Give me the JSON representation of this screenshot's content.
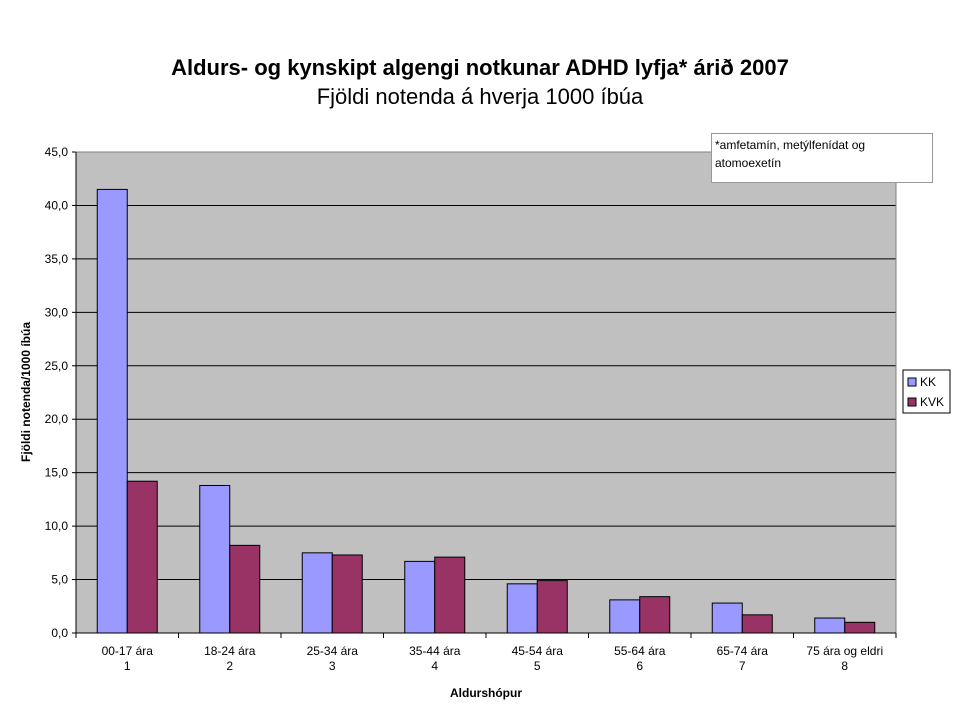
{
  "chart_data": {
    "type": "bar",
    "title": "Aldurs- og kynskipt algengi notkunar ADHD lyfja* árið 2007",
    "subtitle": "Fjöldi notenda á hverja 1000 íbúa",
    "annotation": "*amfetamín, metýlfenídat og atomoexetín",
    "x_label": "Aldurshópur",
    "y_label": "Fjöldi notenda/1000 íbúa",
    "categories": [
      [
        "00-17  ára",
        "1"
      ],
      [
        "18-24  ára",
        "2"
      ],
      [
        "25-34  ára",
        "3"
      ],
      [
        "35-44  ára",
        "4"
      ],
      [
        "45-54  ára",
        "5"
      ],
      [
        "55-64  ára",
        "6"
      ],
      [
        "65-74  ára",
        "7"
      ],
      [
        "75 ára og eldri",
        "8"
      ]
    ],
    "series": [
      {
        "name": "KK",
        "color": "#9999ff",
        "values": [
          41.5,
          13.8,
          7.5,
          6.7,
          4.6,
          3.1,
          2.8,
          1.4
        ]
      },
      {
        "name": "KVK",
        "color": "#993366",
        "values": [
          14.2,
          8.2,
          7.3,
          7.1,
          4.9,
          3.4,
          1.7,
          1.0
        ]
      }
    ],
    "ylim": [
      0,
      45
    ],
    "yticks": [
      {
        "value": 0,
        "label": "0,0"
      },
      {
        "value": 5,
        "label": "5,0"
      },
      {
        "value": 10,
        "label": "10,0"
      },
      {
        "value": 15,
        "label": "15,0"
      },
      {
        "value": 20,
        "label": "20,0"
      },
      {
        "value": 25,
        "label": "25,0"
      },
      {
        "value": 30,
        "label": "30,0"
      },
      {
        "value": 35,
        "label": "35,0"
      },
      {
        "value": 40,
        "label": "40,0"
      },
      {
        "value": 45,
        "label": "45,0"
      }
    ],
    "grid": true,
    "legend": "right"
  }
}
